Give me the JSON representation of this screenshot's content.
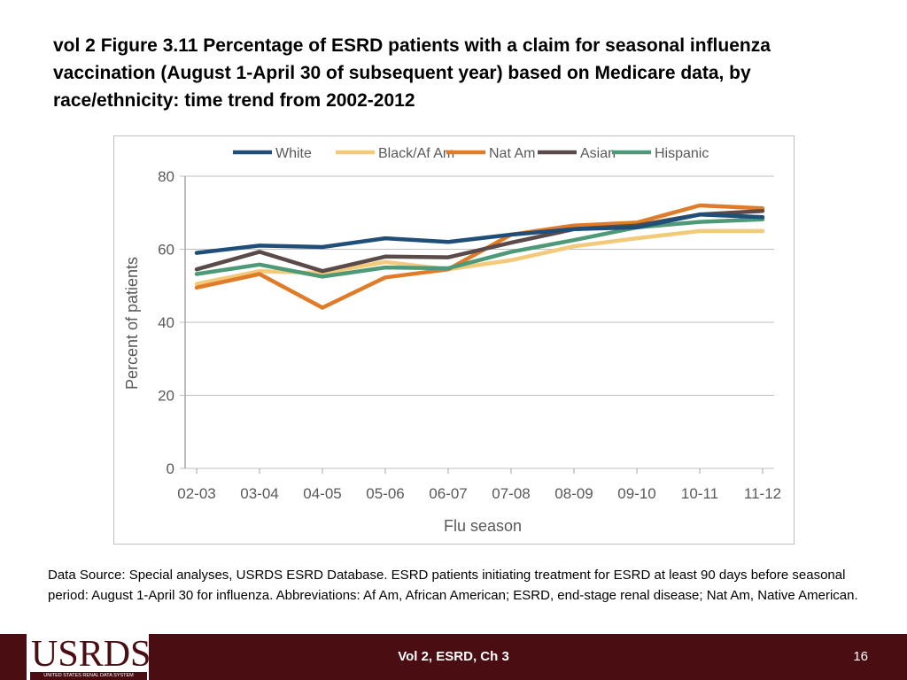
{
  "slide": {
    "title": "vol 2  Figure 3.11 Percentage of ESRD patients with a claim for seasonal influenza vaccination (August 1-April 30 of subsequent year) based on Medicare data, by race/ethnicity: time trend from 2002-2012",
    "source_note": "Data Source: Special analyses, USRDS ESRD Database. ESRD patients initiating treatment for ESRD at least 90 days before seasonal period: August 1-April 30 for influenza. Abbreviations: Af Am, African American; ESRD, end-stage renal disease; Nat Am, Native American."
  },
  "footer": {
    "logo_text": "USRDS",
    "logo_subtext": "UNITED STATES RENAL DATA SYSTEM",
    "center_text": "Vol 2, ESRD, Ch 3",
    "page_number": "16",
    "bar_color": "#4a0d12"
  },
  "chart_data": {
    "type": "line",
    "title": "",
    "xlabel": "Flu season",
    "ylabel": "Percent of patients",
    "categories": [
      "02-03",
      "03-04",
      "04-05",
      "05-06",
      "06-07",
      "07-08",
      "08-09",
      "09-10",
      "10-11",
      "11-12"
    ],
    "ylim": [
      0,
      80
    ],
    "yticks": [
      0,
      20,
      40,
      60,
      80
    ],
    "grid": "horizontal",
    "legend_position": "top",
    "series": [
      {
        "name": "White",
        "color": "#1f4e79",
        "values": [
          59,
          61,
          60.6,
          63,
          62,
          64,
          65.5,
          66,
          69.5,
          68.8
        ]
      },
      {
        "name": "Black/Af Am",
        "color": "#f3c97a",
        "values": [
          50.5,
          54,
          53.5,
          56.5,
          54.5,
          57,
          60.8,
          63,
          65,
          65
        ]
      },
      {
        "name": "Nat Am",
        "color": "#e07b2a",
        "values": [
          49.5,
          53.2,
          44,
          52.3,
          54.5,
          64,
          66.5,
          67.3,
          72,
          71.2
        ]
      },
      {
        "name": "Asian",
        "color": "#5a4a49",
        "values": [
          54.5,
          59.3,
          54,
          58,
          57.8,
          61.8,
          65.5,
          66.5,
          69.5,
          70.5
        ]
      },
      {
        "name": "Hispanic",
        "color": "#4e9a78",
        "values": [
          53.2,
          55.8,
          52.5,
          55,
          54.8,
          59.3,
          62.5,
          66,
          67.5,
          68.2
        ]
      }
    ]
  }
}
